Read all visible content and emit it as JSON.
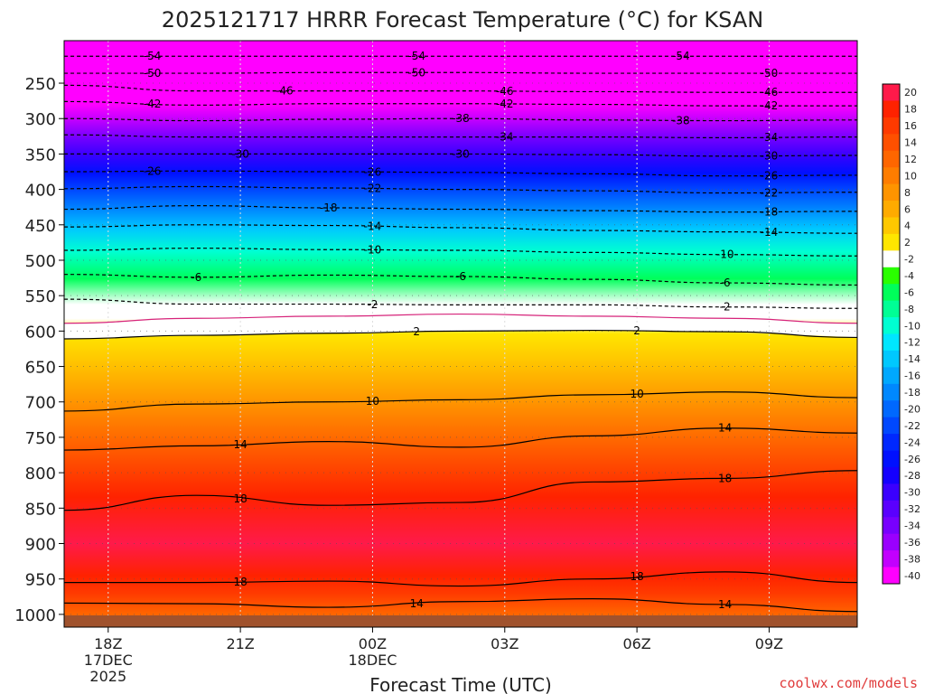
{
  "chart_data": {
    "type": "heatmap",
    "title": "2025121717 HRRR Forecast Temperature (°C) for KSAN",
    "xlabel": "Forecast Time (UTC)",
    "ylabel": "",
    "credit": "coolwx.com/models",
    "x_ticks": [
      {
        "hour": 0,
        "lines": [
          "18Z",
          "17DEC",
          "2025"
        ]
      },
      {
        "hour": 3,
        "lines": [
          "21Z"
        ]
      },
      {
        "hour": 6,
        "lines": [
          "00Z",
          "18DEC"
        ]
      },
      {
        "hour": 9,
        "lines": [
          "03Z"
        ]
      },
      {
        "hour": 12,
        "lines": [
          "06Z"
        ]
      },
      {
        "hour": 15,
        "lines": [
          "09Z"
        ]
      }
    ],
    "xlim_hours": [
      -1,
      17
    ],
    "y_ticks": [
      250,
      300,
      350,
      400,
      450,
      500,
      550,
      600,
      650,
      700,
      750,
      800,
      850,
      900,
      950,
      1000
    ],
    "ylim_hpa": [
      1018,
      190
    ],
    "colorbar": {
      "levels": [
        20,
        18,
        16,
        14,
        12,
        10,
        8,
        6,
        4,
        2,
        -2,
        -4,
        -6,
        -8,
        -10,
        -12,
        -14,
        -16,
        -18,
        -20,
        -22,
        -24,
        -26,
        -28,
        -30,
        -32,
        -34,
        -36,
        -38,
        -40
      ],
      "label_text": [
        "20",
        "18",
        "16",
        "14",
        "12",
        "10",
        "8",
        "6",
        "4",
        "2",
        "-2",
        "-4",
        "-6",
        "-8",
        "-10",
        "-12",
        "-14",
        "-16",
        "-18",
        "-20",
        "-22",
        "-24",
        "-26",
        "-28",
        "-30",
        "-32",
        "-34",
        "-36",
        "-38",
        "-40"
      ],
      "colors": [
        "#ff1a4a",
        "#ff2200",
        "#ff3a00",
        "#ff5000",
        "#ff6600",
        "#ff7d00",
        "#ff9400",
        "#ffab00",
        "#ffc800",
        "#ffe600",
        "#ffffff",
        "#2aff00",
        "#00ff5a",
        "#00ff95",
        "#00ffd2",
        "#00e6ff",
        "#00c8ff",
        "#00a8ff",
        "#0088ff",
        "#0068ff",
        "#0048ff",
        "#0028ff",
        "#0010ff",
        "#1400ff",
        "#3a00ff",
        "#5a00ff",
        "#7800ff",
        "#9a00ff",
        "#c200ff",
        "#ff00ff"
      ],
      "ground_color": "#a0522d"
    },
    "isotherms": [
      {
        "value": -54,
        "label": "-54",
        "p": [
          212,
          212,
          212,
          212,
          212,
          212,
          212
        ],
        "label_hours": [
          1,
          7,
          13
        ]
      },
      {
        "value": -50,
        "label": "-50",
        "p": [
          236,
          236,
          235,
          235,
          236,
          236,
          236
        ],
        "label_hours": [
          1,
          7,
          15
        ]
      },
      {
        "value": -46,
        "label": "-46",
        "p": [
          253,
          261,
          261,
          261,
          262,
          263,
          263
        ],
        "label_hours": [
          4,
          9,
          15
        ]
      },
      {
        "value": -42,
        "label": "-42",
        "p": [
          276,
          281,
          279,
          279,
          280,
          282,
          282
        ],
        "label_hours": [
          1,
          9,
          15
        ]
      },
      {
        "value": -38,
        "label": "-38",
        "p": [
          300,
          303,
          301,
          300,
          302,
          303,
          302
        ],
        "label_hours": [
          8,
          13
        ]
      },
      {
        "value": -34,
        "label": "-34",
        "p": [
          323,
          326,
          326,
          326,
          326,
          327,
          326
        ],
        "label_hours": [
          9,
          15
        ]
      },
      {
        "value": -30,
        "label": "-30",
        "p": [
          350,
          350,
          350,
          350,
          351,
          353,
          352
        ],
        "label_hours": [
          3,
          8,
          15
        ]
      },
      {
        "value": -26,
        "label": "-26",
        "p": [
          375,
          374,
          375,
          376,
          378,
          381,
          380
        ],
        "label_hours": [
          1,
          6,
          15
        ]
      },
      {
        "value": -22,
        "label": "-22",
        "p": [
          399,
          396,
          398,
          400,
          402,
          405,
          404
        ],
        "label_hours": [
          6,
          15
        ]
      },
      {
        "value": -18,
        "label": "-18",
        "p": [
          428,
          423,
          426,
          428,
          430,
          432,
          431
        ],
        "label_hours": [
          5,
          15
        ]
      },
      {
        "value": -14,
        "label": "-14",
        "p": [
          453,
          450,
          451,
          454,
          458,
          460,
          462
        ],
        "label_hours": [
          6,
          15
        ]
      },
      {
        "value": -10,
        "label": "-10",
        "p": [
          486,
          483,
          485,
          486,
          489,
          492,
          494
        ],
        "label_hours": [
          6,
          14
        ]
      },
      {
        "value": -6,
        "label": "-6",
        "p": [
          520,
          524,
          521,
          523,
          527,
          532,
          535
        ],
        "label_hours": [
          2,
          8,
          14
        ]
      },
      {
        "value": -2,
        "label": "-2",
        "p": [
          555,
          562,
          562,
          563,
          563,
          566,
          568
        ],
        "label_hours": [
          6,
          14
        ]
      },
      {
        "value": 0,
        "label": "",
        "p": [
          589,
          582,
          579,
          576,
          579,
          582,
          589
        ],
        "label_hours": []
      },
      {
        "value": 2,
        "label": "2",
        "p": [
          611,
          606,
          603,
          600,
          599,
          601,
          609
        ],
        "label_hours": [
          7,
          12
        ]
      },
      {
        "value": 10,
        "label": "10",
        "p": [
          713,
          703,
          700,
          697,
          690,
          686,
          694
        ],
        "label_hours": [
          6,
          12
        ]
      },
      {
        "value": 14,
        "label": "14",
        "p": [
          768,
          762,
          756,
          764,
          748,
          737,
          744
        ],
        "label_hours": [
          3,
          14
        ]
      },
      {
        "value": 18,
        "label": "18",
        "p": [
          853,
          832,
          846,
          842,
          813,
          808,
          797
        ],
        "label_hours": [
          3,
          14
        ]
      },
      {
        "value": 18,
        "label": "18",
        "p": [
          955,
          955,
          953,
          960,
          950,
          940,
          955
        ],
        "label_hours": [
          3,
          12
        ]
      },
      {
        "value": 14,
        "label": "14",
        "p": [
          984,
          985,
          990,
          982,
          978,
          986,
          996
        ],
        "label_hours": [
          7,
          14
        ]
      }
    ]
  }
}
